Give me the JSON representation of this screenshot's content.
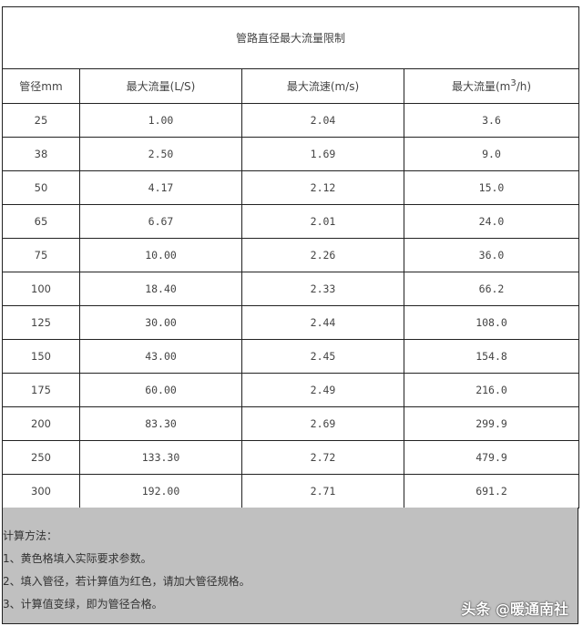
{
  "table": {
    "title": "管路直径最大流量限制",
    "headers": [
      "管径mm",
      "最大流量(L/S)",
      "最大流速(m/s)",
      "最大流量(m",
      "3",
      "/h)"
    ],
    "rows": [
      [
        "25",
        "1.00",
        "2.04",
        "3.6"
      ],
      [
        "38",
        "2.50",
        "1.69",
        "9.0"
      ],
      [
        "50",
        "4.17",
        "2.12",
        "15.0"
      ],
      [
        "65",
        "6.67",
        "2.01",
        "24.0"
      ],
      [
        "75",
        "10.00",
        "2.26",
        "36.0"
      ],
      [
        "100",
        "18.40",
        "2.33",
        "66.2"
      ],
      [
        "125",
        "30.00",
        "2.44",
        "108.0"
      ],
      [
        "150",
        "43.00",
        "2.45",
        "154.8"
      ],
      [
        "175",
        "60.00",
        "2.49",
        "216.0"
      ],
      [
        "200",
        "83.30",
        "2.69",
        "299.9"
      ],
      [
        "250",
        "133.30",
        "2.72",
        "479.9"
      ],
      [
        "300",
        "192.00",
        "2.71",
        "691.2"
      ]
    ]
  },
  "notes": {
    "heading": "计算方法：",
    "lines": [
      "1、黄色格填入实际要求参数。",
      "2、填入管径，若计算值为红色，请加大管径规格。",
      "3、计算值变绿，即为管径合格。"
    ],
    "background": "#c0c0c0"
  },
  "watermark": "头条 @暖通南社"
}
